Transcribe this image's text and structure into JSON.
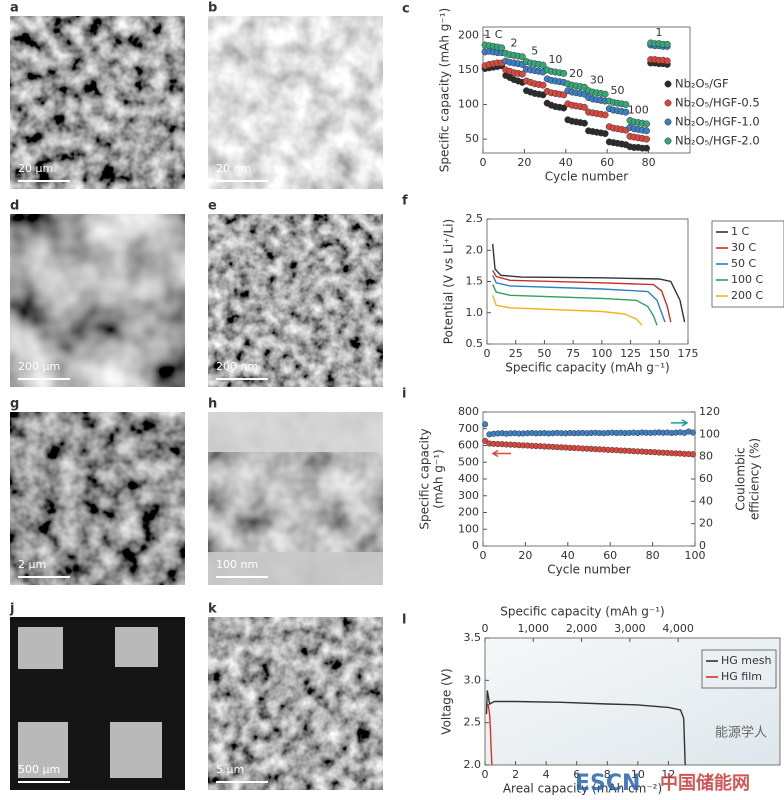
{
  "micrographs": [
    {
      "panel": "a",
      "scale_bar": "20 μm"
    },
    {
      "panel": "b",
      "scale_bar": "20 nm"
    },
    {
      "panel": "d",
      "scale_bar": "200 μm"
    },
    {
      "panel": "e",
      "scale_bar": "200 nm"
    },
    {
      "panel": "g",
      "scale_bar": "2 μm"
    },
    {
      "panel": "h",
      "scale_bar": "100 nm"
    },
    {
      "panel": "j",
      "scale_bar": "500 μm"
    },
    {
      "panel": "k",
      "scale_bar": "5 μm"
    }
  ],
  "chart_data": [
    {
      "panel": "c",
      "type": "scatter",
      "x_label": "Cycle number",
      "y_label": "Specific capacity (mAh g⁻¹)",
      "x": [
        1,
        3,
        5,
        7,
        9,
        11,
        13,
        15,
        17,
        19,
        21,
        23,
        25,
        27,
        29,
        31,
        33,
        35,
        37,
        39,
        41,
        43,
        45,
        47,
        49,
        51,
        53,
        55,
        57,
        59,
        61,
        63,
        65,
        67,
        69,
        71,
        73,
        75,
        77,
        79,
        81,
        83,
        85,
        87,
        89
      ],
      "xlim": [
        0,
        100
      ],
      "xticks": [
        0,
        20,
        40,
        60,
        80
      ],
      "ylim": [
        30,
        212
      ],
      "yticks": [
        50,
        100,
        150,
        200
      ],
      "legend": "right",
      "rate_labels": [
        "1 C",
        "2",
        "5",
        "10",
        "20",
        "30",
        "50",
        "100",
        "1"
      ],
      "series": [
        {
          "name": "Nb₂O₅/GF",
          "color": "#2b2b2b",
          "values": [
            152,
            153,
            154,
            155,
            156,
            142,
            139,
            136,
            134,
            132,
            120,
            118,
            116,
            115,
            114,
            102,
            99,
            97,
            96,
            95,
            78,
            76,
            75,
            74,
            73,
            62,
            61,
            60,
            59,
            58,
            46,
            45,
            44,
            43,
            42,
            39,
            38,
            38,
            37,
            37,
            160,
            160,
            159,
            159,
            158
          ]
        },
        {
          "name": "Nb₂O₅/HGF-0.5",
          "color": "#d9473f",
          "values": [
            156,
            158,
            159,
            160,
            160,
            150,
            148,
            146,
            145,
            144,
            134,
            132,
            130,
            129,
            128,
            119,
            117,
            116,
            115,
            114,
            101,
            99,
            98,
            97,
            96,
            89,
            88,
            87,
            86,
            85,
            68,
            66,
            65,
            64,
            63,
            54,
            53,
            52,
            51,
            50,
            165,
            165,
            164,
            164,
            163
          ]
        },
        {
          "name": "Nb₂O₅/HGF-1.0",
          "color": "#3b7fc4",
          "values": [
            176,
            177,
            176,
            175,
            175,
            163,
            161,
            160,
            159,
            158,
            151,
            150,
            149,
            148,
            147,
            137,
            135,
            134,
            133,
            132,
            120,
            118,
            117,
            116,
            115,
            110,
            108,
            107,
            106,
            105,
            94,
            92,
            91,
            90,
            89,
            67,
            65,
            64,
            63,
            62,
            186,
            185,
            185,
            184,
            184
          ]
        },
        {
          "name": "Nb₂O₅/HGF-2.0",
          "color": "#35a877",
          "values": [
            186,
            185,
            184,
            183,
            182,
            174,
            172,
            171,
            170,
            169,
            162,
            160,
            159,
            158,
            157,
            150,
            148,
            147,
            146,
            145,
            130,
            128,
            127,
            126,
            125,
            120,
            118,
            117,
            116,
            115,
            105,
            103,
            102,
            101,
            100,
            77,
            75,
            74,
            73,
            72,
            189,
            188,
            188,
            187,
            187
          ]
        }
      ]
    },
    {
      "panel": "f",
      "type": "line",
      "x_label": "Specific capacity (mAh g⁻¹)",
      "y_label": "Potential (V vs Li⁺/Li)",
      "xlim": [
        0,
        175
      ],
      "xticks": [
        0,
        25,
        50,
        75,
        100,
        125,
        150,
        175
      ],
      "ylim": [
        0.5,
        2.5
      ],
      "yticks": [
        0.5,
        {
          "value": 1,
          "label": "1.0"
        },
        1.5,
        {
          "value": 2,
          "label": "2.0"
        },
        2.5
      ],
      "legend": "outside right",
      "series": [
        {
          "name": "1 C",
          "color": "#333333",
          "x": [
            5,
            7,
            12,
            30,
            100,
            150,
            160,
            168,
            172
          ],
          "values": [
            2.1,
            1.7,
            1.6,
            1.57,
            1.56,
            1.54,
            1.5,
            1.2,
            0.85
          ]
        },
        {
          "name": "30 C",
          "color": "#c9302c",
          "x": [
            5,
            8,
            20,
            100,
            145,
            152,
            157,
            160
          ],
          "values": [
            1.68,
            1.58,
            1.52,
            1.48,
            1.45,
            1.35,
            1.1,
            0.85
          ]
        },
        {
          "name": "50 C",
          "color": "#2f7fc1",
          "x": [
            5,
            8,
            20,
            100,
            140,
            148,
            152,
            155
          ],
          "values": [
            1.6,
            1.48,
            1.43,
            1.38,
            1.34,
            1.2,
            1.0,
            0.85
          ]
        },
        {
          "name": "100 C",
          "color": "#2ca25f",
          "x": [
            5,
            8,
            20,
            100,
            130,
            140,
            145,
            148
          ],
          "values": [
            1.45,
            1.33,
            1.28,
            1.23,
            1.2,
            1.1,
            0.95,
            0.8
          ]
        },
        {
          "name": "200 C",
          "color": "#f2b21c",
          "x": [
            5,
            8,
            20,
            100,
            120,
            130,
            135
          ],
          "values": [
            1.28,
            1.12,
            1.08,
            1.02,
            0.98,
            0.9,
            0.8
          ]
        }
      ]
    },
    {
      "panel": "i",
      "type": "scatter",
      "x_label": "Cycle number",
      "y_label": [
        "Specific capacity",
        "(mAh g⁻¹)"
      ],
      "y2_label": [
        "Coulombic",
        "efficiency (%)"
      ],
      "x": [
        1,
        3,
        5,
        7,
        9,
        11,
        13,
        15,
        17,
        19,
        21,
        23,
        25,
        27,
        29,
        31,
        33,
        35,
        37,
        39,
        41,
        43,
        45,
        47,
        49,
        51,
        53,
        55,
        57,
        59,
        61,
        63,
        65,
        67,
        69,
        71,
        73,
        75,
        77,
        79,
        81,
        83,
        85,
        87,
        89,
        91,
        93,
        95,
        97,
        99
      ],
      "xlim": [
        0,
        100
      ],
      "xticks": [
        0,
        20,
        40,
        60,
        80,
        100
      ],
      "ylim": [
        0,
        800
      ],
      "yticks": [
        0,
        100,
        200,
        300,
        400,
        500,
        600,
        700,
        800
      ],
      "y2lim": [
        0,
        120
      ],
      "y2ticks": [
        0,
        20,
        40,
        60,
        80,
        100,
        120
      ],
      "series": [
        {
          "color": "#d9473f",
          "values": [
            628,
            612,
            610,
            609,
            608,
            606,
            605,
            604,
            602,
            601,
            600,
            598,
            597,
            596,
            594,
            593,
            592,
            590,
            589,
            588,
            586,
            585,
            584,
            582,
            581,
            580,
            578,
            577,
            576,
            574,
            573,
            572,
            570,
            569,
            568,
            566,
            565,
            564,
            562,
            561,
            560,
            558,
            557,
            556,
            554,
            553,
            552,
            550,
            549,
            548
          ]
        },
        {
          "color": "#3b7fc4",
          "axis": "y2",
          "values": [
            109,
            100,
            100.5,
            100.8,
            101,
            100.6,
            100.9,
            101,
            100.7,
            100.8,
            101,
            101.2,
            100.9,
            101,
            101.1,
            100.8,
            101,
            101.3,
            101,
            100.9,
            101.2,
            101,
            101.1,
            101.3,
            101,
            101.2,
            101.4,
            101.1,
            101,
            101.3,
            101.5,
            101.2,
            101.4,
            101.1,
            101.3,
            101.5,
            101.2,
            101.6,
            101.4,
            101.3,
            101.5,
            101.7,
            101.4,
            101.6,
            101.2,
            101.5,
            101.8,
            101.3,
            102.5,
            101.6
          ]
        }
      ]
    },
    {
      "panel": "l",
      "type": "line",
      "x_label": "Areal capacity (mAh cm⁻²)",
      "x2_label": "Specific capacity (mAh g⁻¹)",
      "y_label": "Voltage (V)",
      "xlim": [
        0,
        19.3
      ],
      "xticks": [
        0,
        2,
        4,
        6,
        8,
        10,
        12
      ],
      "x2lim": [
        0,
        6110
      ],
      "x2ticks": [
        0,
        {
          "value": 1000,
          "label": "1,000"
        },
        {
          "value": 2000,
          "label": "2,000"
        },
        {
          "value": 3000,
          "label": "3,000"
        },
        {
          "value": 4000,
          "label": "4,000"
        }
      ],
      "ylim": [
        2,
        3.5
      ],
      "yticks": [
        {
          "value": 2,
          "label": "2.0"
        },
        2.5,
        {
          "value": 3,
          "label": "3.0"
        },
        3.5
      ],
      "legend": "upper right",
      "series": [
        {
          "name": "HG mesh",
          "color": "#333333",
          "x": [
            0.1,
            0.15,
            0.3,
            0.6,
            2,
            5,
            8,
            10,
            12,
            12.8,
            13,
            13.1
          ],
          "values": [
            2.6,
            2.88,
            2.72,
            2.75,
            2.75,
            2.74,
            2.72,
            2.71,
            2.68,
            2.65,
            2.55,
            2.0
          ]
        },
        {
          "name": "HG film",
          "color": "#d6322b",
          "x": [
            0.2,
            0.3,
            0.35,
            0.4,
            0.45
          ],
          "values": [
            2.72,
            2.6,
            2.45,
            2.2,
            2.0
          ]
        }
      ]
    }
  ],
  "watermark": [
    "能源学人",
    "ESCN",
    "中国储能网"
  ]
}
